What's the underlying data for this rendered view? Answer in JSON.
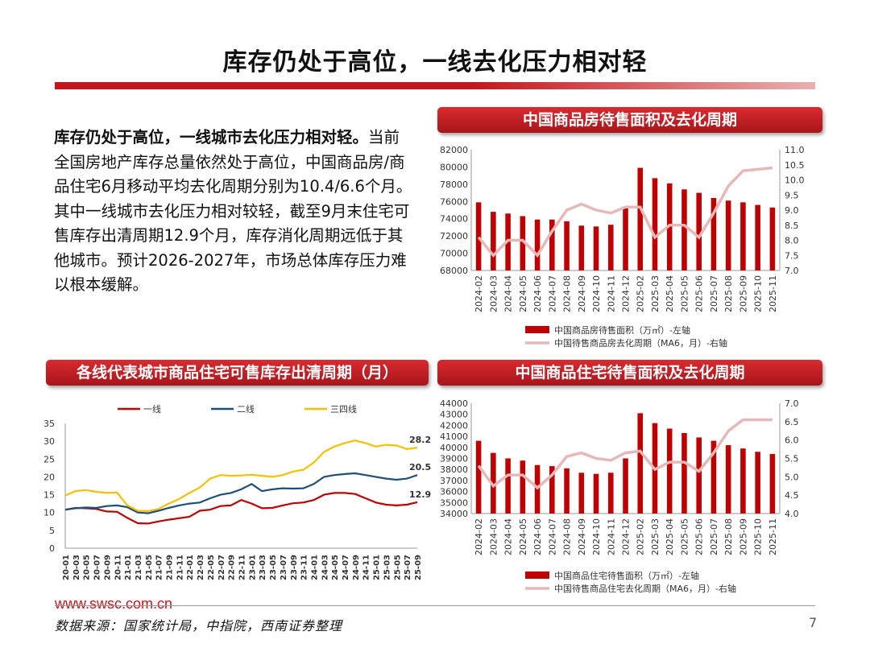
{
  "page": {
    "title": "库存仍处于高位，一线去化压力相对轻",
    "body_lead": "库存仍处于高位，一线城市去化压力相对轻。",
    "body_rest": "当前全国房地产库存总量依然处于高位，中国商品房/商品住宅6月移动平均去化周期分别为10.4/6.6个月。其中一线城市去化压力相对较轻，截至9月末住宅可售库存出清周期12.9个月，库存消化周期远低于其他城市。预计2026-2027年，市场总体库存压力难以根本缓解。",
    "website": "www.swsc.com.cn",
    "source": "数据来源：国家统计局，中指院，西南证券整理",
    "page_number": "7",
    "accent_color": "#c8151b"
  },
  "panels": {
    "top_right_title": "中国商品房待售面积及去化周期",
    "bottom_left_title": "各线代表城市商品住宅可售库存出清周期（月）",
    "bottom_right_title": "中国商品住宅待售面积及去化周期"
  },
  "chart_data": [
    {
      "type": "bar",
      "categories": [
        "2024-02",
        "2024-03",
        "2024-04",
        "2024-05",
        "2024-06",
        "2024-07",
        "2024-08",
        "2024-09",
        "2024-10",
        "2024-11",
        "2024-12",
        "2025-02",
        "2025-03",
        "2025-04",
        "2025-05",
        "2025-06",
        "2025-07",
        "2025-08",
        "2025-09",
        "2025-10",
        "2025-11"
      ],
      "series": [
        {
          "name": "中国商品房待售面积（万㎡）-左轴",
          "kind": "bar",
          "axis": "left",
          "color": "#c00000",
          "values": [
            75900,
            74800,
            74600,
            74300,
            73900,
            73900,
            73700,
            73200,
            73100,
            73300,
            75200,
            79900,
            78700,
            78100,
            77400,
            77000,
            76400,
            76100,
            75900,
            75600,
            75300
          ]
        },
        {
          "name": "中国待售商品房去化周期（MA6，月）-右轴",
          "kind": "line",
          "axis": "right",
          "color": "#e6b8b7",
          "values": [
            8.1,
            7.5,
            8.0,
            8.0,
            7.5,
            8.3,
            9.0,
            9.2,
            9.0,
            8.9,
            9.1,
            9.1,
            8.1,
            8.5,
            8.5,
            8.1,
            8.9,
            9.8,
            10.3,
            10.35,
            10.4
          ]
        }
      ],
      "left_axis": {
        "ylim": [
          68000,
          82000
        ],
        "ticks": [
          "82000",
          "80000",
          "78000",
          "76000",
          "74000",
          "72000",
          "70000",
          "68000"
        ]
      },
      "right_axis": {
        "ylim": [
          7.0,
          11.0
        ],
        "ticks": [
          "11.0",
          "10.5",
          "10.0",
          "9.5",
          "9.0",
          "8.5",
          "8.0",
          "7.5",
          "7.0"
        ]
      },
      "legend": "bottom"
    },
    {
      "type": "line",
      "x_ticks": [
        "20-01",
        "20-03",
        "20-05",
        "20-07",
        "20-09",
        "20-11",
        "21-01",
        "21-03",
        "21-05",
        "21-07",
        "21-09",
        "21-11",
        "22-01",
        "22-03",
        "22-05",
        "22-07",
        "22-09",
        "22-11",
        "23-01",
        "23-03",
        "23-05",
        "23-07",
        "23-09",
        "23-11",
        "24-01",
        "24-03",
        "24-05",
        "24-07",
        "24-09",
        "24-11",
        "25-01",
        "25-03",
        "25-05",
        "25-07",
        "25-09"
      ],
      "series": [
        {
          "name": "一线",
          "color": "#c00000",
          "values": [
            10.8,
            11.3,
            11.2,
            11.0,
            10.3,
            10.2,
            8.5,
            7.0,
            6.9,
            7.5,
            8.0,
            8.4,
            8.8,
            10.5,
            10.8,
            11.8,
            12.0,
            13.5,
            12.5,
            11.2,
            11.3,
            12.0,
            12.6,
            12.8,
            13.5,
            15.0,
            15.5,
            15.5,
            15.2,
            14.0,
            12.8,
            12.2,
            12.0,
            12.2,
            12.9
          ],
          "end_label": "12.9"
        },
        {
          "name": "二线",
          "color": "#1f4e79",
          "values": [
            10.8,
            11.2,
            11.4,
            11.3,
            11.8,
            12.0,
            11.5,
            10.0,
            9.8,
            10.5,
            11.3,
            12.0,
            12.5,
            12.8,
            14.0,
            15.0,
            15.5,
            16.5,
            18.0,
            16.0,
            16.5,
            16.8,
            16.7,
            16.8,
            18.0,
            20.0,
            20.5,
            20.8,
            21.0,
            20.5,
            20.0,
            19.5,
            19.2,
            19.5,
            20.5
          ],
          "end_label": "20.5"
        },
        {
          "name": "三四线",
          "color": "#f5c000",
          "values": [
            14.8,
            16.0,
            16.3,
            15.8,
            15.5,
            15.6,
            12.0,
            10.5,
            10.4,
            11.0,
            12.5,
            13.8,
            15.5,
            17.0,
            19.5,
            20.5,
            20.3,
            20.4,
            20.6,
            20.3,
            20.0,
            20.5,
            21.5,
            22.0,
            24.0,
            27.0,
            28.5,
            29.5,
            30.2,
            29.5,
            28.5,
            29.0,
            28.8,
            27.8,
            28.2
          ],
          "end_label": "28.2"
        }
      ],
      "ylim": [
        0,
        35
      ],
      "y_ticks": [
        "35",
        "30",
        "25",
        "20",
        "15",
        "10",
        "5",
        "0"
      ],
      "legend": "top"
    },
    {
      "type": "bar",
      "categories": [
        "2024-02",
        "2024-03",
        "2024-04",
        "2024-05",
        "2024-06",
        "2024-07",
        "2024-08",
        "2024-09",
        "2024-10",
        "2024-11",
        "2024-12",
        "2025-02",
        "2025-03",
        "2025-04",
        "2025-05",
        "2025-06",
        "2025-07",
        "2025-08",
        "2025-09",
        "2025-10",
        "2025-11"
      ],
      "series": [
        {
          "name": "中国商品住宅待售面积（万㎡）-左轴",
          "kind": "bar",
          "axis": "left",
          "color": "#c00000",
          "values": [
            40600,
            39500,
            39000,
            38800,
            38400,
            38300,
            38100,
            37700,
            37600,
            37700,
            39000,
            43100,
            42200,
            41700,
            41300,
            40900,
            40600,
            40200,
            39900,
            39600,
            39400
          ]
        },
        {
          "name": "中国待售商品住宅去化周期（MA6，月）-右轴",
          "kind": "line",
          "axis": "right",
          "color": "#e6b8b7",
          "values": [
            5.3,
            4.75,
            5.05,
            5.05,
            4.7,
            5.05,
            5.55,
            5.65,
            5.5,
            5.45,
            5.65,
            5.7,
            5.2,
            5.4,
            5.4,
            5.15,
            5.65,
            6.25,
            6.55,
            6.55,
            6.55
          ]
        }
      ],
      "left_axis": {
        "ylim": [
          34000,
          44000
        ],
        "ticks": [
          "44000",
          "43000",
          "42000",
          "41000",
          "40000",
          "39000",
          "38000",
          "37000",
          "36000",
          "35000",
          "34000"
        ]
      },
      "right_axis": {
        "ylim": [
          4.0,
          7.0
        ],
        "ticks": [
          "7.0",
          "6.5",
          "6.0",
          "5.5",
          "5.0",
          "4.5",
          "4.0"
        ]
      },
      "legend": "bottom"
    }
  ]
}
